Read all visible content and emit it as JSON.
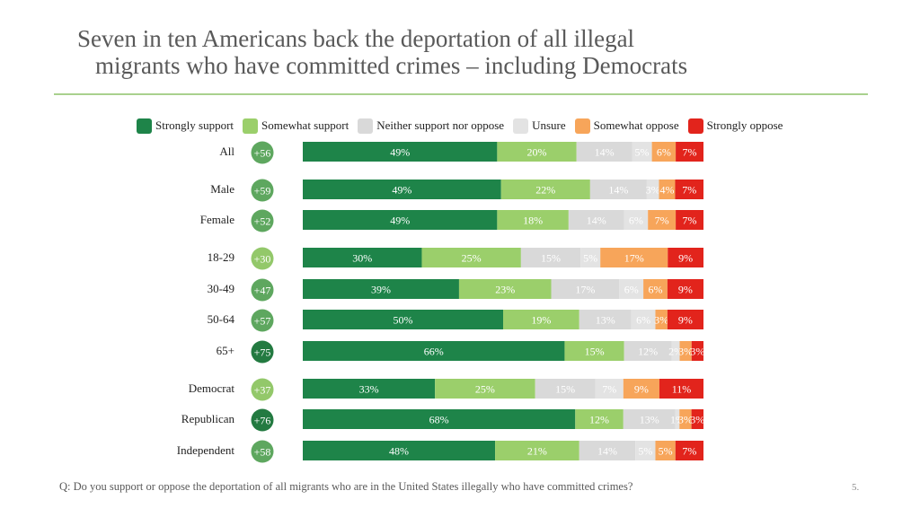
{
  "title_line1": "Seven in ten Americans back the deportation of all illegal",
  "title_line2": "migrants who have committed crimes – including Democrats",
  "footnote": "Q: Do you support or oppose the deportation of all migrants who are in the United States illegally who have committed crimes?",
  "page_number": "5.",
  "colors": {
    "strongly_support": "#1e8449",
    "somewhat_support": "#9bcf6b",
    "neither": "#d9d9d9",
    "unsure": "#e3e3e3",
    "somewhat_oppose": "#f7a55a",
    "strongly_oppose": "#e2241c",
    "net_dark": "#237a41",
    "net_mid": "#5ea75f",
    "net_light": "#93c86a"
  },
  "chart_data": {
    "type": "bar",
    "stacked": true,
    "orientation": "horizontal",
    "percent_scale": true,
    "series": [
      {
        "name": "Strongly support",
        "color": "#1e8449"
      },
      {
        "name": "Somewhat support",
        "color": "#9bcf6b"
      },
      {
        "name": "Neither support nor oppose",
        "color": "#d9d9d9"
      },
      {
        "name": "Unsure",
        "color": "#e3e3e3"
      },
      {
        "name": "Somewhat oppose",
        "color": "#f7a55a"
      },
      {
        "name": "Strongly oppose",
        "color": "#e2241c"
      }
    ],
    "rows": [
      {
        "label": "All",
        "net": "+56",
        "net_shade": "mid",
        "values": [
          49,
          20,
          14,
          5,
          6,
          7
        ]
      },
      {
        "label": "Male",
        "net": "+59",
        "net_shade": "mid",
        "values": [
          49,
          22,
          14,
          3,
          4,
          7
        ]
      },
      {
        "label": "Female",
        "net": "+52",
        "net_shade": "mid",
        "values": [
          49,
          18,
          14,
          6,
          7,
          7
        ]
      },
      {
        "label": "18-29",
        "net": "+30",
        "net_shade": "light",
        "values": [
          30,
          25,
          15,
          5,
          17,
          9
        ]
      },
      {
        "label": "30-49",
        "net": "+47",
        "net_shade": "mid",
        "values": [
          39,
          23,
          17,
          6,
          6,
          9
        ]
      },
      {
        "label": "50-64",
        "net": "+57",
        "net_shade": "mid",
        "values": [
          50,
          19,
          13,
          6,
          3,
          9
        ]
      },
      {
        "label": "65+",
        "net": "+75",
        "net_shade": "dark",
        "values": [
          66,
          15,
          12,
          2,
          3,
          3
        ]
      },
      {
        "label": "Democrat",
        "net": "+37",
        "net_shade": "light",
        "values": [
          33,
          25,
          15,
          7,
          9,
          11
        ]
      },
      {
        "label": "Republican",
        "net": "+76",
        "net_shade": "dark",
        "values": [
          68,
          12,
          13,
          1,
          3,
          3
        ]
      },
      {
        "label": "Independent",
        "net": "+58",
        "net_shade": "mid",
        "values": [
          48,
          21,
          14,
          5,
          5,
          7
        ]
      }
    ]
  }
}
